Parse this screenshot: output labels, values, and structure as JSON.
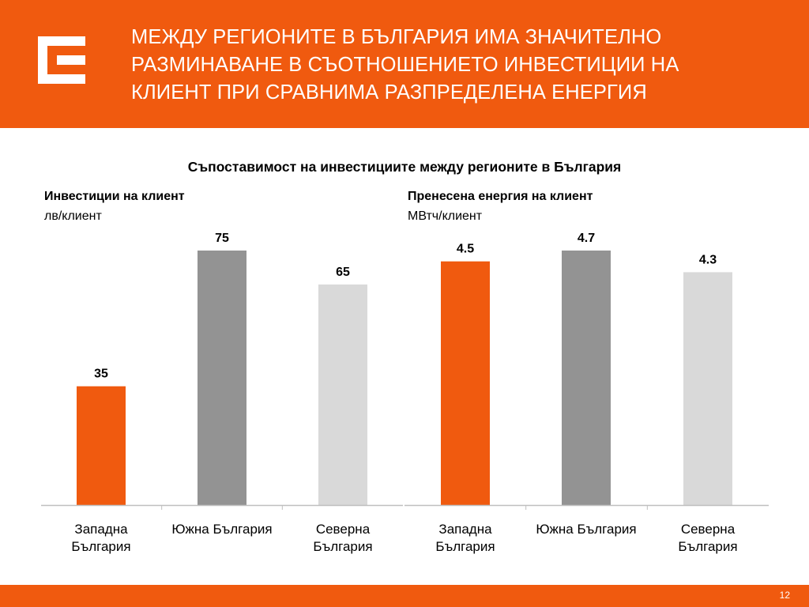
{
  "header": {
    "title_lines": [
      "МЕЖДУ РЕГИОНИТЕ В БЪЛГАРИЯ ИМА ЗНАЧИТЕЛНО",
      "РАЗМИНАВАНЕ В СЪОТНОШЕНИЕТО ИНВЕСТИЦИИ НА",
      "КЛИЕНТ ПРИ СРАВНИМА РАЗПРЕДЕЛЕНА ЕНЕРГИЯ"
    ],
    "logo_icon": "cez-logo-icon"
  },
  "subtitle": "Съпоставимост на инвестициите между регионите в България",
  "colors": {
    "brand": "#f05a0f",
    "bar_dark": "#939393",
    "bar_light": "#d9d9d9",
    "axis": "#bfbfbf"
  },
  "chart_data": [
    {
      "type": "bar",
      "title": "Инвестиции на клиент",
      "ylabel": "лв/клиент",
      "categories": [
        "Западна България",
        "Южна България",
        "Северна България"
      ],
      "category_lines": [
        [
          "Западна",
          "България"
        ],
        [
          "Южна България"
        ],
        [
          "Северна",
          "България"
        ]
      ],
      "values": [
        35,
        75,
        65
      ],
      "value_labels": [
        "35",
        "75",
        "65"
      ],
      "bar_colors": [
        "#f05a0f",
        "#939393",
        "#d9d9d9"
      ],
      "ylim": [
        0,
        75
      ],
      "grid": false
    },
    {
      "type": "bar",
      "title": "Пренесена енергия на клиент",
      "ylabel": "МВтч/клиент",
      "categories": [
        "Западна България",
        "Южна България",
        "Северна България"
      ],
      "category_lines": [
        [
          "Западна",
          "България"
        ],
        [
          "Южна България"
        ],
        [
          "Северна",
          "България"
        ]
      ],
      "values": [
        4.5,
        4.7,
        4.3
      ],
      "value_labels": [
        "4.5",
        "4.7",
        "4.3"
      ],
      "bar_colors": [
        "#f05a0f",
        "#939393",
        "#d9d9d9"
      ],
      "ylim": [
        0,
        4.7
      ],
      "grid": false
    }
  ],
  "footer": {
    "page_number": "12"
  }
}
